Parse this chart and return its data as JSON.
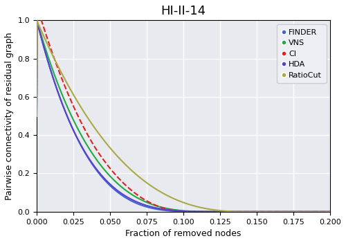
{
  "title": "HI-II-14",
  "xlabel": "Fraction of removed nodes",
  "ylabel": "Pairwise connectivity of residual graph",
  "xlim": [
    0.0,
    0.2
  ],
  "ylim": [
    0.0,
    1.0
  ],
  "xticks": [
    0.0,
    0.025,
    0.05,
    0.075,
    0.1,
    0.125,
    0.15,
    0.175,
    0.2
  ],
  "yticks": [
    0.0,
    0.2,
    0.4,
    0.6,
    0.8,
    1.0
  ],
  "background_color": "#e8eaf0",
  "grid_color": "#ffffff",
  "models": [
    "FINDER",
    "VNS",
    "CI",
    "HDA",
    "RatioCut"
  ],
  "colors": [
    "#4466cc",
    "#22aa44",
    "#dd2222",
    "#5544cc",
    "#aaaa44"
  ],
  "linestyles": [
    "-",
    "-",
    "--",
    "-",
    "-"
  ],
  "linewidths": [
    1.5,
    1.5,
    1.5,
    1.5,
    1.5
  ],
  "legend_fontsize": 8,
  "title_fontsize": 13,
  "axis_fontsize": 9,
  "tick_fontsize": 8
}
